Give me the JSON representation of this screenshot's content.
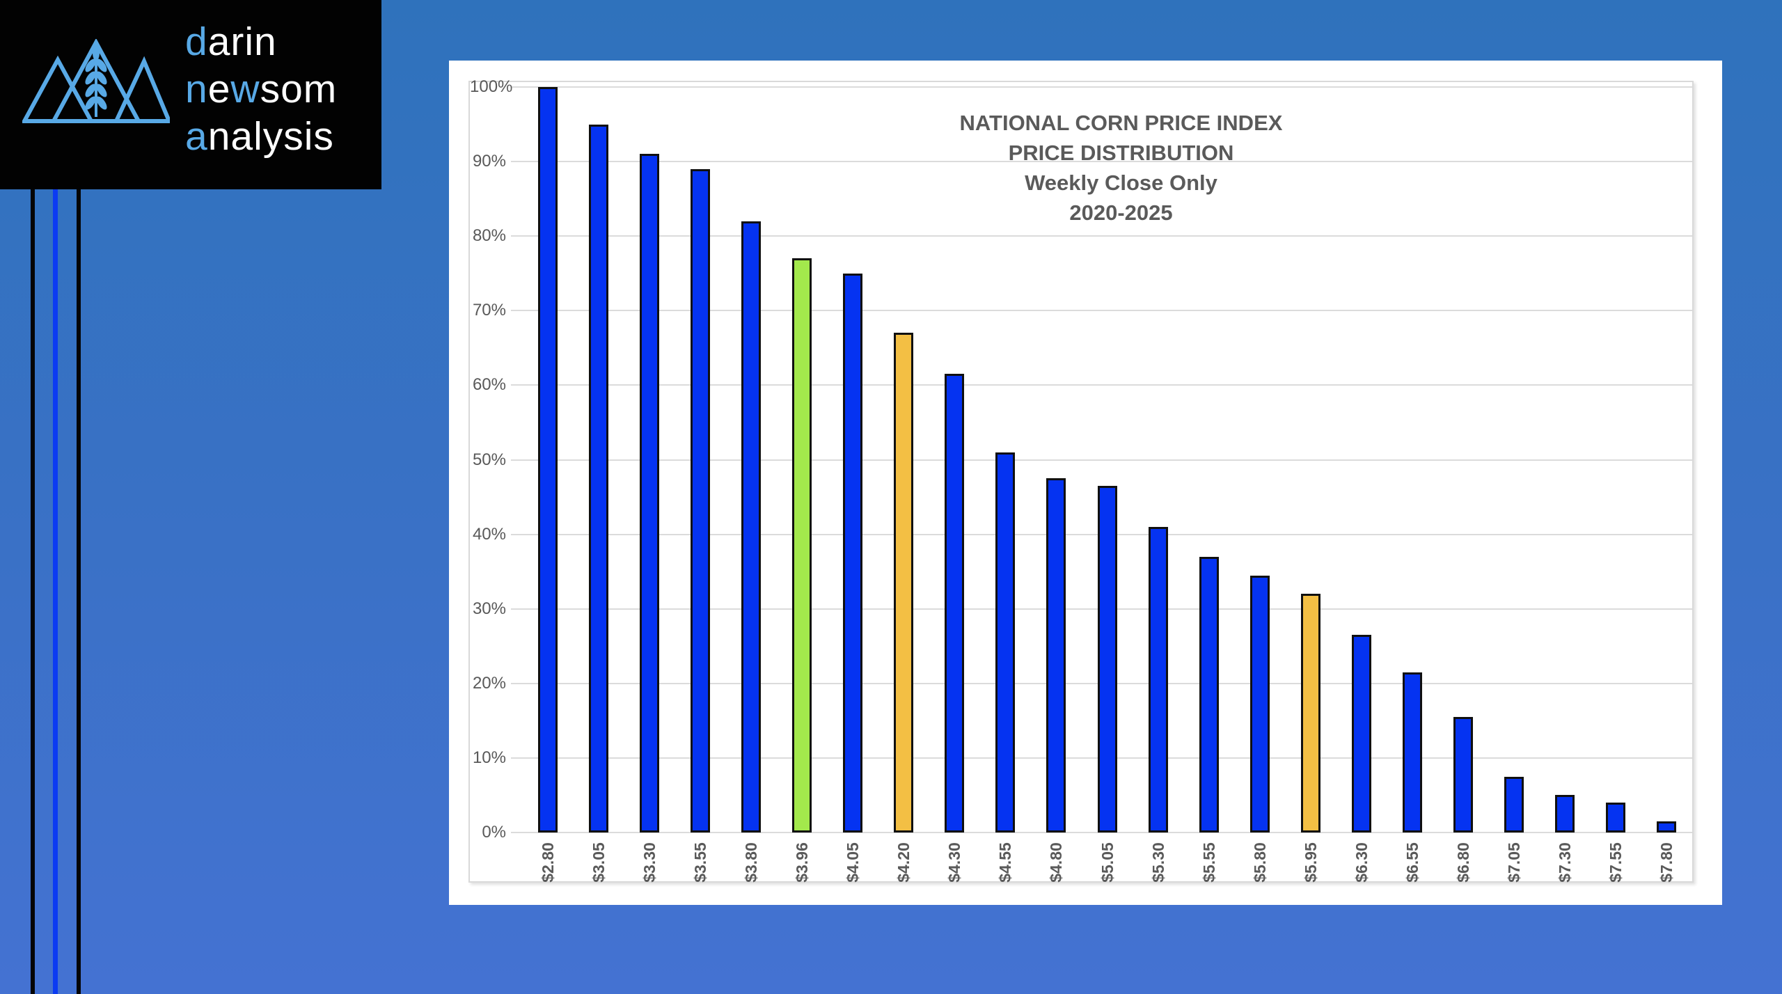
{
  "logo": {
    "accent_color": "#58a9e6",
    "lines": [
      {
        "segments": [
          {
            "text": "d",
            "accent": true
          },
          {
            "text": "arin",
            "accent": false
          }
        ]
      },
      {
        "segments": [
          {
            "text": "n",
            "accent": true
          },
          {
            "text": "e",
            "accent": false
          },
          {
            "text": "w",
            "accent": true
          },
          {
            "text": "som",
            "accent": false
          }
        ]
      },
      {
        "segments": [
          {
            "text": "a",
            "accent": true
          },
          {
            "text": "nalysis",
            "accent": false
          }
        ]
      }
    ]
  },
  "colors": {
    "background_top": "#2f72bc",
    "background_bottom": "#4472d2",
    "accent_line_blue": "#0b3bf2",
    "decor_line_black": "#050505",
    "bar_blue": "#0533f1",
    "bar_green": "#a3e94c",
    "bar_orange": "#f3bf44",
    "bar_border": "#101010",
    "gridline": "#dbdbdb",
    "axis_text": "#595959",
    "title_text": "#5a5a5a"
  },
  "chart_data": {
    "type": "bar",
    "title_lines": [
      "NATIONAL CORN PRICE INDEX",
      "PRICE DISTRIBUTION",
      "Weekly Close Only",
      "2020-2025"
    ],
    "xlabel": "",
    "ylabel": "",
    "ylim": [
      0,
      100
    ],
    "grid": true,
    "legend": "none",
    "y_tick_labels": [
      "0%",
      "10%",
      "20%",
      "30%",
      "40%",
      "50%",
      "60%",
      "70%",
      "80%",
      "90%",
      "100%"
    ],
    "categories": [
      "$2.80",
      "$3.05",
      "$3.30",
      "$3.55",
      "$3.80",
      "$3.96",
      "$4.05",
      "$4.20",
      "$4.30",
      "$4.55",
      "$4.80",
      "$5.05",
      "$5.30",
      "$5.55",
      "$5.80",
      "$5.95",
      "$6.30",
      "$6.55",
      "$6.80",
      "$7.05",
      "$7.30",
      "$7.55",
      "$7.80"
    ],
    "values": [
      100,
      95,
      91,
      89,
      82,
      77,
      75,
      67,
      61.5,
      51,
      47.5,
      46.5,
      41,
      37,
      34.5,
      32,
      26.5,
      21.5,
      15.5,
      7.5,
      5,
      4,
      1.5
    ],
    "bar_styles": [
      "blue",
      "blue",
      "blue",
      "blue",
      "blue",
      "green",
      "blue",
      "orange",
      "blue",
      "blue",
      "blue",
      "blue",
      "blue",
      "blue",
      "blue",
      "orange",
      "blue",
      "blue",
      "blue",
      "blue",
      "blue",
      "blue",
      "blue"
    ]
  }
}
